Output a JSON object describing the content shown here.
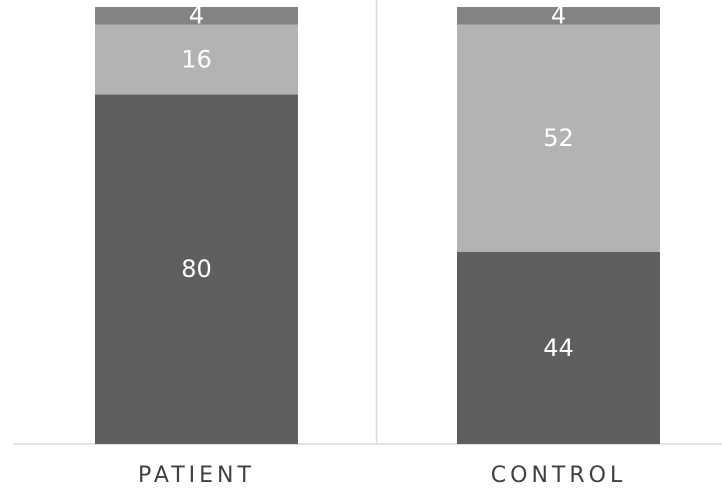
{
  "chart_data": {
    "type": "bar",
    "stacked": true,
    "categories": [
      "PATIENT",
      "CONTROL"
    ],
    "series": [
      {
        "values": [
          80,
          44
        ],
        "color": "#5f5f5f"
      },
      {
        "values": [
          16,
          52
        ],
        "color": "#b3b3b3"
      },
      {
        "values": [
          4,
          4
        ],
        "color": "#838383"
      }
    ],
    "ylim": [
      0,
      100
    ],
    "grid": false,
    "legend": "none",
    "title": "",
    "xlabel": "",
    "ylabel": ""
  },
  "colors": {
    "background": "#ffffff",
    "axis": "#d9d9d9",
    "category_label": "#404040",
    "segment_label": "#ffffff"
  }
}
